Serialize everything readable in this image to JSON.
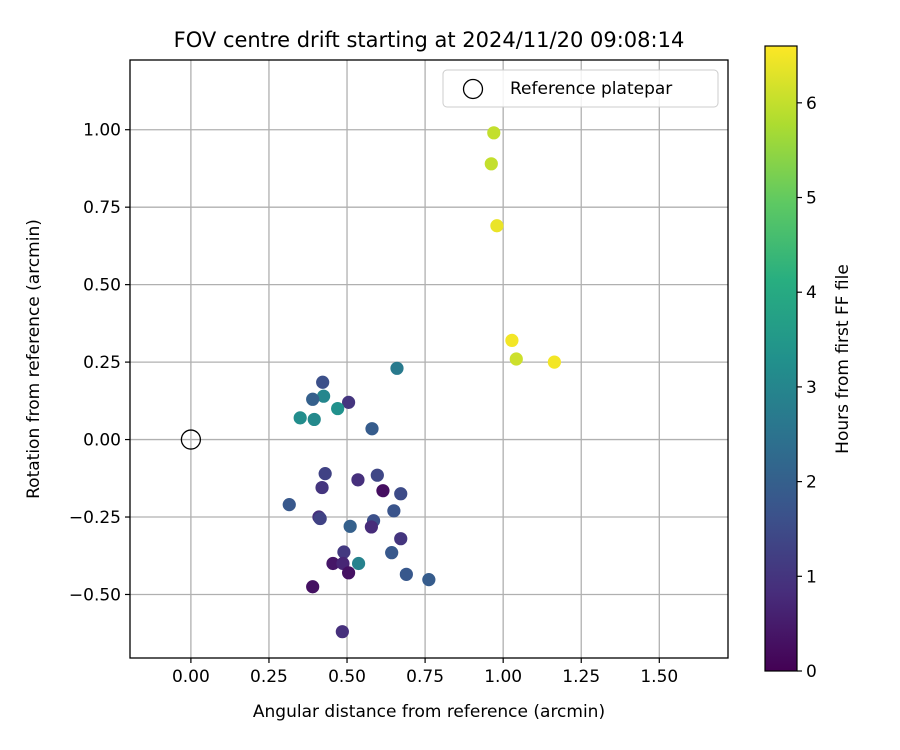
{
  "chart_data": {
    "type": "scatter",
    "title": "FOV centre drift starting at 2024/11/20 09:08:14",
    "xlabel": "Angular distance from reference (arcmin)",
    "ylabel": "Rotation from reference (arcmin)",
    "xlim": [
      -0.195,
      1.72
    ],
    "ylim": [
      -0.705,
      1.225
    ],
    "xticks": [
      0.0,
      0.25,
      0.5,
      0.75,
      1.0,
      1.25,
      1.5
    ],
    "xtick_labels": [
      "0.00",
      "0.25",
      "0.50",
      "0.75",
      "1.00",
      "1.25",
      "1.50"
    ],
    "yticks": [
      -0.5,
      -0.25,
      0.0,
      0.25,
      0.5,
      0.75,
      1.0
    ],
    "ytick_labels": [
      "−0.50",
      "−0.25",
      "0.00",
      "0.25",
      "0.50",
      "0.75",
      "1.00"
    ],
    "grid": true,
    "legend": {
      "placement": "top-right",
      "label": "Reference platepar"
    },
    "reference_point": {
      "x": 0.0,
      "y": 0.0
    },
    "colorbar": {
      "label": "Hours from first FF file",
      "min": 0,
      "max": 6.6,
      "ticks": [
        0,
        1,
        2,
        3,
        4,
        5,
        6
      ],
      "tick_labels": [
        "0",
        "1",
        "2",
        "3",
        "4",
        "5",
        "6"
      ],
      "colormap": "viridis"
    },
    "points": [
      {
        "x": 0.97,
        "y": 0.99,
        "hours": 6.0
      },
      {
        "x": 0.962,
        "y": 0.89,
        "hours": 6.0
      },
      {
        "x": 0.98,
        "y": 0.69,
        "hours": 6.4
      },
      {
        "x": 1.028,
        "y": 0.32,
        "hours": 6.5
      },
      {
        "x": 1.042,
        "y": 0.26,
        "hours": 6.1
      },
      {
        "x": 1.164,
        "y": 0.25,
        "hours": 6.5
      },
      {
        "x": 0.66,
        "y": 0.23,
        "hours": 2.7
      },
      {
        "x": 0.422,
        "y": 0.185,
        "hours": 1.6
      },
      {
        "x": 0.425,
        "y": 0.14,
        "hours": 3.0
      },
      {
        "x": 0.39,
        "y": 0.13,
        "hours": 2.0
      },
      {
        "x": 0.505,
        "y": 0.12,
        "hours": 1.0
      },
      {
        "x": 0.47,
        "y": 0.1,
        "hours": 3.3
      },
      {
        "x": 0.35,
        "y": 0.07,
        "hours": 3.2
      },
      {
        "x": 0.395,
        "y": 0.065,
        "hours": 3.1
      },
      {
        "x": 0.58,
        "y": 0.035,
        "hours": 1.9
      },
      {
        "x": 0.43,
        "y": -0.11,
        "hours": 1.3
      },
      {
        "x": 0.597,
        "y": -0.115,
        "hours": 1.4
      },
      {
        "x": 0.535,
        "y": -0.13,
        "hours": 0.9
      },
      {
        "x": 0.42,
        "y": -0.155,
        "hours": 1.0
      },
      {
        "x": 0.615,
        "y": -0.165,
        "hours": 0.25
      },
      {
        "x": 0.672,
        "y": -0.175,
        "hours": 1.5
      },
      {
        "x": 0.315,
        "y": -0.21,
        "hours": 1.8
      },
      {
        "x": 0.65,
        "y": -0.23,
        "hours": 1.7
      },
      {
        "x": 0.41,
        "y": -0.25,
        "hours": 0.9
      },
      {
        "x": 0.414,
        "y": -0.255,
        "hours": 1.3
      },
      {
        "x": 0.585,
        "y": -0.262,
        "hours": 1.6
      },
      {
        "x": 0.51,
        "y": -0.28,
        "hours": 2.0
      },
      {
        "x": 0.578,
        "y": -0.282,
        "hours": 0.8
      },
      {
        "x": 0.672,
        "y": -0.32,
        "hours": 1.0
      },
      {
        "x": 0.49,
        "y": -0.363,
        "hours": 1.1
      },
      {
        "x": 0.643,
        "y": -0.365,
        "hours": 1.8
      },
      {
        "x": 0.455,
        "y": -0.4,
        "hours": 0.4
      },
      {
        "x": 0.487,
        "y": -0.4,
        "hours": 0.7
      },
      {
        "x": 0.537,
        "y": -0.4,
        "hours": 2.9
      },
      {
        "x": 0.505,
        "y": -0.43,
        "hours": 0.3
      },
      {
        "x": 0.69,
        "y": -0.435,
        "hours": 1.8
      },
      {
        "x": 0.762,
        "y": -0.452,
        "hours": 1.9
      },
      {
        "x": 0.39,
        "y": -0.475,
        "hours": 0.3
      },
      {
        "x": 0.485,
        "y": -0.62,
        "hours": 0.9
      }
    ]
  }
}
